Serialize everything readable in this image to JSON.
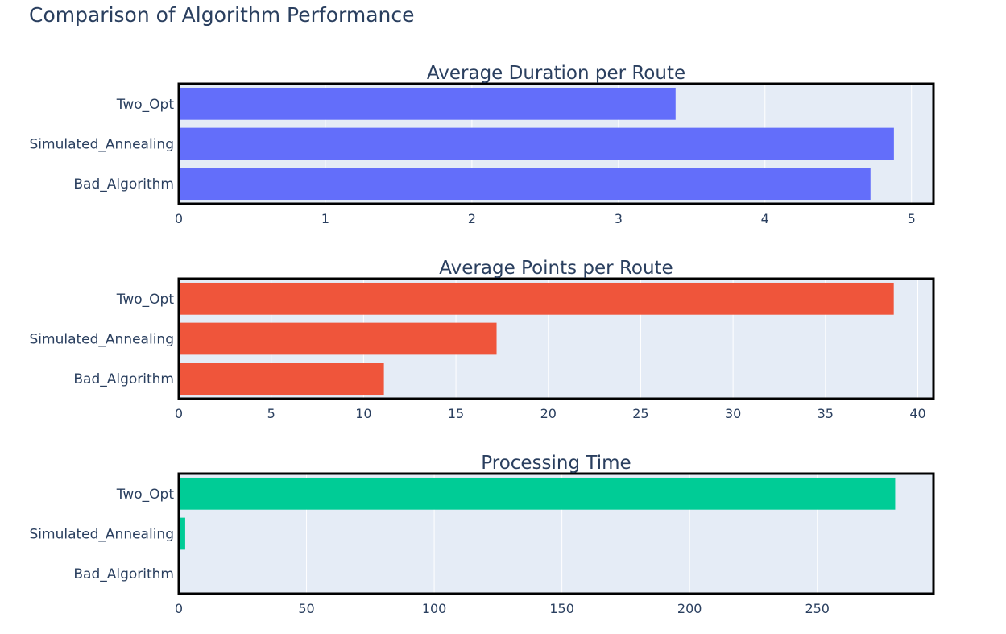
{
  "title": "Comparison of Algorithm Performance",
  "colors": {
    "plot_bg": "#e5ecf6",
    "grid": "#ffffff",
    "frame": "#000000",
    "text": "#2a3f5f"
  },
  "chart_data": [
    {
      "type": "bar",
      "orientation": "horizontal",
      "title": "Average Duration per Route",
      "categories": [
        "Two_Opt",
        "Simulated_Annealing",
        "Bad_Algorithm"
      ],
      "values": [
        3.39,
        4.88,
        4.72
      ],
      "color": "#636efa",
      "xlim": [
        0,
        5.15
      ],
      "xticks": [
        0,
        1,
        2,
        3,
        4,
        5
      ],
      "grid": true
    },
    {
      "type": "bar",
      "orientation": "horizontal",
      "title": "Average Points per Route",
      "categories": [
        "Two_Opt",
        "Simulated_Annealing",
        "Bad_Algorithm"
      ],
      "values": [
        38.7,
        17.2,
        11.1
      ],
      "color": "#ef553b",
      "xlim": [
        0,
        40.85
      ],
      "xticks": [
        0,
        5,
        10,
        15,
        20,
        25,
        30,
        35,
        40
      ],
      "grid": true
    },
    {
      "type": "bar",
      "orientation": "horizontal",
      "title": "Processing Time",
      "categories": [
        "Two_Opt",
        "Simulated_Annealing",
        "Bad_Algorithm"
      ],
      "values": [
        280.5,
        2.5,
        0.05
      ],
      "color": "#00cc96",
      "xlim": [
        0,
        295.5
      ],
      "xticks": [
        0,
        50,
        100,
        150,
        200,
        250
      ],
      "grid": true
    }
  ]
}
